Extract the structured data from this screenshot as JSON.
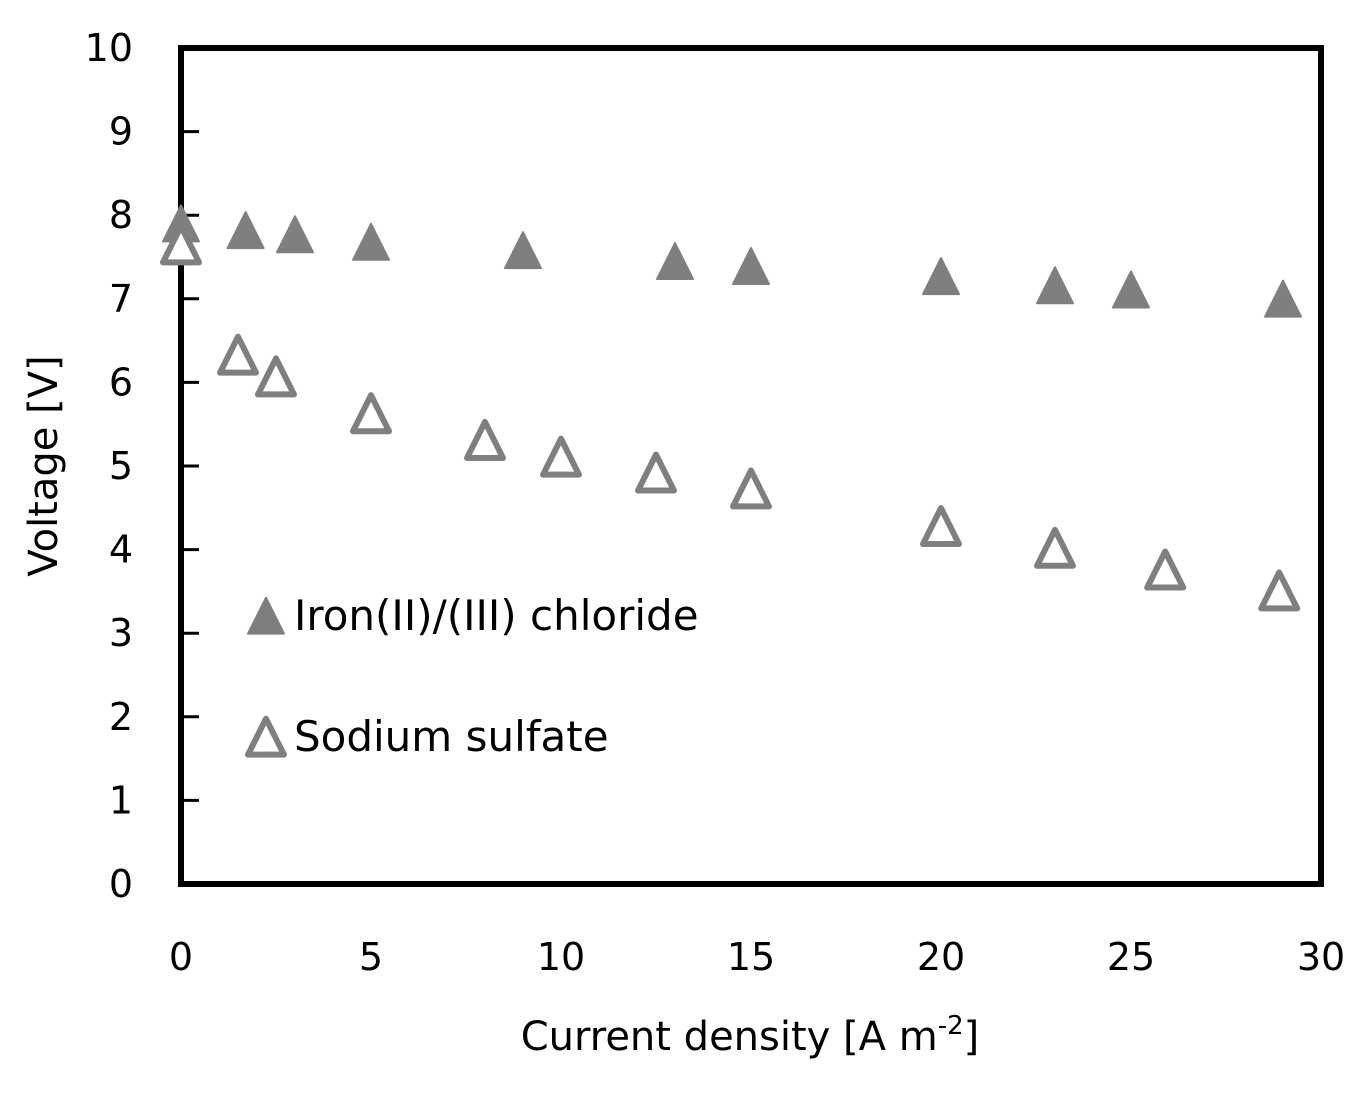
{
  "chart_data": {
    "type": "scatter",
    "title": "",
    "xlabel": "Current density [A m",
    "xlabel_superscript": "-2",
    "xlabel_close": "]",
    "ylabel": "Voltage [V]",
    "xlim": [
      0,
      30
    ],
    "ylim": [
      0,
      10
    ],
    "x_ticks": [
      "0",
      "5",
      "10",
      "15",
      "20",
      "25",
      "30"
    ],
    "y_ticks": [
      "0",
      "1",
      "2",
      "3",
      "4",
      "5",
      "6",
      "7",
      "8",
      "9",
      "10"
    ],
    "grid": false,
    "legend_position": "left",
    "series": [
      {
        "name": "Iron(II)/(III) chloride",
        "marker": "filled-triangle",
        "color": "#7f7f7f",
        "points": [
          {
            "x": 0,
            "y": 7.85
          },
          {
            "x": 1.7,
            "y": 7.77
          },
          {
            "x": 3,
            "y": 7.72
          },
          {
            "x": 5,
            "y": 7.63
          },
          {
            "x": 9,
            "y": 7.53
          },
          {
            "x": 13,
            "y": 7.4
          },
          {
            "x": 15,
            "y": 7.34
          },
          {
            "x": 20,
            "y": 7.22
          },
          {
            "x": 23,
            "y": 7.11
          },
          {
            "x": 25,
            "y": 7.06
          },
          {
            "x": 29,
            "y": 6.95
          }
        ]
      },
      {
        "name": "Sodium sulfate",
        "marker": "open-triangle",
        "color": "#7f7f7f",
        "points": [
          {
            "x": 0,
            "y": 7.6
          },
          {
            "x": 1.5,
            "y": 6.28
          },
          {
            "x": 2.5,
            "y": 6.02
          },
          {
            "x": 5,
            "y": 5.58
          },
          {
            "x": 8,
            "y": 5.26
          },
          {
            "x": 10,
            "y": 5.06
          },
          {
            "x": 12.5,
            "y": 4.87
          },
          {
            "x": 15,
            "y": 4.68
          },
          {
            "x": 20,
            "y": 4.23
          },
          {
            "x": 23,
            "y": 3.97
          },
          {
            "x": 25.9,
            "y": 3.71
          },
          {
            "x": 28.9,
            "y": 3.46
          }
        ]
      }
    ]
  }
}
